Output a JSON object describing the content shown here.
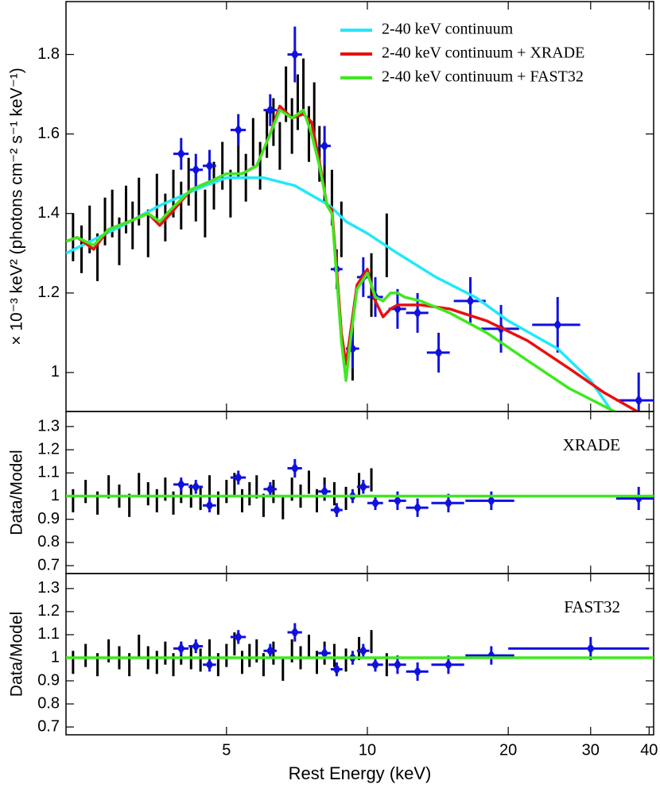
{
  "chart_data": [
    {
      "type": "errorbar-line",
      "ylabel": "× 10⁻³ keV² (photons cm⁻² s⁻¹ keV⁻¹)",
      "xscale": "log",
      "xlim": [
        2.27,
        40.9
      ],
      "xticks": [
        5,
        10,
        20,
        30,
        40
      ],
      "ylim": [
        0.902,
        1.933
      ],
      "yticks": [
        1,
        1.2,
        1.4,
        1.6,
        1.8
      ],
      "legend": "upper right",
      "series": [
        {
          "style": "points",
          "color": "#000000",
          "x": [
            2.35,
            2.45,
            2.55,
            2.65,
            2.75,
            2.85,
            2.95,
            3.05,
            3.15,
            3.25,
            3.4,
            3.55,
            3.7,
            3.85,
            4.0,
            4.15,
            4.3,
            4.5,
            4.7,
            4.9,
            5.1,
            5.3,
            5.5,
            5.7,
            5.9,
            6.1,
            6.3,
            6.5,
            6.7,
            6.9,
            7.1,
            7.3,
            7.5,
            7.7,
            7.9,
            8.1,
            8.4,
            8.8,
            9.3,
            10.2,
            11.0
          ],
          "values": [
            1.34,
            1.31,
            1.36,
            1.29,
            1.38,
            1.4,
            1.33,
            1.41,
            1.37,
            1.43,
            1.35,
            1.44,
            1.39,
            1.45,
            1.42,
            1.48,
            1.44,
            1.4,
            1.47,
            1.52,
            1.45,
            1.55,
            1.49,
            1.58,
            1.52,
            1.6,
            1.63,
            1.57,
            1.7,
            1.62,
            1.68,
            1.72,
            1.6,
            1.66,
            1.55,
            1.5,
            1.44,
            1.36,
            1.06,
            1.22,
            1.32
          ],
          "yerr": [
            0.06,
            0.06,
            0.06,
            0.06,
            0.06,
            0.06,
            0.06,
            0.06,
            0.06,
            0.06,
            0.06,
            0.06,
            0.06,
            0.06,
            0.06,
            0.06,
            0.06,
            0.06,
            0.06,
            0.06,
            0.06,
            0.06,
            0.06,
            0.06,
            0.06,
            0.06,
            0.06,
            0.06,
            0.07,
            0.07,
            0.07,
            0.07,
            0.07,
            0.07,
            0.07,
            0.07,
            0.07,
            0.07,
            0.08,
            0.08,
            0.08
          ]
        },
        {
          "style": "points",
          "color": "#1010e0",
          "marker": "diamond",
          "x": [
            4.0,
            4.3,
            4.6,
            5.3,
            6.2,
            7.0,
            8.1,
            8.6,
            9.3,
            9.8,
            10.4,
            11.6,
            12.8,
            14.2,
            16.6,
            19.3,
            25.5,
            38
          ],
          "values": [
            1.55,
            1.51,
            1.52,
            1.61,
            1.66,
            1.8,
            1.57,
            1.26,
            1.06,
            1.24,
            1.19,
            1.16,
            1.15,
            1.05,
            1.18,
            1.11,
            1.12,
            0.93
          ],
          "xerr": [
            0.15,
            0.15,
            0.15,
            0.2,
            0.2,
            0.25,
            0.25,
            0.25,
            0.3,
            0.3,
            0.4,
            0.5,
            0.7,
            0.8,
            1.3,
            1.8,
            3.0,
            4
          ],
          "yerr": [
            0.04,
            0.04,
            0.04,
            0.04,
            0.04,
            0.07,
            0.05,
            0.05,
            0.05,
            0.05,
            0.05,
            0.05,
            0.05,
            0.05,
            0.06,
            0.06,
            0.07,
            0.07
          ]
        },
        {
          "name": "2-40 keV continuum",
          "style": "line",
          "color": "#22e8f8",
          "x": [
            2.27,
            3,
            3.6,
            4.5,
            5,
            6,
            7,
            8.3,
            9,
            10,
            11.6,
            14,
            17,
            20,
            25.5,
            30,
            33.4
          ],
          "values": [
            1.3,
            1.37,
            1.42,
            1.47,
            1.49,
            1.49,
            1.47,
            1.42,
            1.38,
            1.35,
            1.3,
            1.24,
            1.19,
            1.13,
            1.06,
            0.98,
            0.9
          ]
        },
        {
          "name": "2-40 keV continuum + XRADE",
          "style": "line",
          "color": "#e81010",
          "x": [
            2.27,
            2.4,
            2.6,
            2.8,
            3.1,
            3.4,
            3.6,
            3.8,
            4.2,
            4.6,
            5,
            5.4,
            5.8,
            6.2,
            6.5,
            6.9,
            7.3,
            7.6,
            7.9,
            8.2,
            8.4,
            8.6,
            8.8,
            9.0,
            9.2,
            9.5,
            10,
            10.4,
            10.8,
            11.2,
            11.6,
            12,
            13,
            15,
            18,
            22,
            27,
            32,
            38
          ],
          "values": [
            1.33,
            1.34,
            1.31,
            1.36,
            1.38,
            1.4,
            1.37,
            1.4,
            1.46,
            1.48,
            1.5,
            1.5,
            1.52,
            1.6,
            1.67,
            1.64,
            1.65,
            1.63,
            1.53,
            1.42,
            1.41,
            1.26,
            1.1,
            1.02,
            1.1,
            1.22,
            1.26,
            1.18,
            1.14,
            1.16,
            1.17,
            1.17,
            1.17,
            1.16,
            1.13,
            1.08,
            1.01,
            0.95,
            0.9
          ]
        },
        {
          "name": "2-40 keV continuum + FAST32",
          "style": "line",
          "color": "#40e820",
          "x": [
            2.27,
            2.4,
            2.6,
            2.8,
            3.1,
            3.4,
            3.6,
            3.8,
            4.2,
            4.6,
            5,
            5.4,
            5.8,
            6.2,
            6.5,
            6.9,
            7.3,
            7.6,
            7.9,
            8.2,
            8.4,
            8.6,
            8.8,
            9.0,
            9.2,
            9.5,
            10,
            10.4,
            10.8,
            11.2,
            11.6,
            12,
            13,
            15,
            18,
            22,
            27,
            34
          ],
          "values": [
            1.33,
            1.34,
            1.32,
            1.36,
            1.38,
            1.4,
            1.38,
            1.41,
            1.46,
            1.48,
            1.5,
            1.5,
            1.52,
            1.6,
            1.66,
            1.64,
            1.66,
            1.6,
            1.52,
            1.42,
            1.4,
            1.24,
            1.08,
            0.98,
            1.08,
            1.21,
            1.25,
            1.19,
            1.18,
            1.2,
            1.2,
            1.19,
            1.18,
            1.15,
            1.1,
            1.03,
            0.96,
            0.9
          ]
        }
      ]
    },
    {
      "type": "errorbar-line",
      "ylabel": "Data/Model",
      "annotation": "XRADE",
      "xscale": "log",
      "xlim": [
        2.27,
        40.9
      ],
      "xticks": [
        5,
        10,
        20,
        30,
        40
      ],
      "ylim": [
        0.666,
        1.365
      ],
      "yticks": [
        0.7,
        0.8,
        0.9,
        1,
        1.1,
        1.2,
        1.3
      ],
      "series": [
        {
          "style": "points",
          "color": "#000000",
          "x": [
            2.35,
            2.5,
            2.65,
            2.8,
            2.95,
            3.1,
            3.25,
            3.4,
            3.55,
            3.7,
            3.85,
            4.0,
            4.2,
            4.4,
            4.6,
            4.8,
            5.0,
            5.2,
            5.4,
            5.6,
            5.8,
            6.0,
            6.3,
            6.6,
            6.9,
            7.2,
            7.5,
            7.8,
            8.1,
            8.5,
            9.0,
            9.6,
            10.2
          ],
          "values": [
            0.98,
            1.02,
            0.97,
            1.04,
            1.0,
            0.96,
            1.05,
            1.01,
            0.98,
            1.03,
            0.97,
            1.02,
            1.0,
            0.99,
            1.04,
            0.97,
            1.02,
            1.05,
            0.98,
            1.01,
            1.04,
            0.96,
            1.02,
            0.95,
            1.03,
            1.0,
            1.06,
            0.98,
            1.03,
            1.01,
            0.99,
            1.05,
            1.07
          ],
          "yerr": [
            0.05,
            0.05,
            0.05,
            0.05,
            0.05,
            0.05,
            0.05,
            0.05,
            0.05,
            0.05,
            0.05,
            0.05,
            0.05,
            0.05,
            0.05,
            0.05,
            0.05,
            0.05,
            0.05,
            0.05,
            0.05,
            0.05,
            0.05,
            0.05,
            0.05,
            0.05,
            0.05,
            0.05,
            0.05,
            0.05,
            0.05,
            0.05,
            0.05
          ]
        },
        {
          "style": "points",
          "color": "#1010e0",
          "marker": "diamond",
          "x": [
            4.0,
            4.3,
            4.6,
            5.3,
            6.2,
            7.0,
            8.1,
            8.6,
            9.3,
            9.8,
            10.4,
            11.6,
            12.8,
            14.9,
            18.4,
            38
          ],
          "values": [
            1.05,
            1.04,
            0.96,
            1.08,
            1.03,
            1.12,
            1.02,
            0.94,
            1.0,
            1.04,
            0.97,
            0.98,
            0.95,
            0.97,
            0.98,
            0.99
          ],
          "xerr": [
            0.15,
            0.15,
            0.15,
            0.2,
            0.2,
            0.25,
            0.25,
            0.25,
            0.3,
            0.3,
            0.4,
            0.5,
            0.7,
            1.2,
            2.2,
            4
          ],
          "yerr": [
            0.03,
            0.03,
            0.03,
            0.03,
            0.03,
            0.04,
            0.03,
            0.03,
            0.03,
            0.03,
            0.03,
            0.04,
            0.04,
            0.04,
            0.04,
            0.05
          ]
        },
        {
          "style": "line",
          "color": "#40e820",
          "x": [
            2.27,
            40.9
          ],
          "values": [
            1,
            1
          ]
        }
      ]
    },
    {
      "type": "errorbar-line",
      "ylabel": "Data/Model",
      "annotation": "FAST32",
      "xlabel": "Rest Energy (keV)",
      "xscale": "log",
      "xlim": [
        2.27,
        40.9
      ],
      "xticks": [
        5,
        10,
        20,
        30,
        40
      ],
      "ylim": [
        0.666,
        1.365
      ],
      "yticks": [
        0.7,
        0.8,
        0.9,
        1,
        1.1,
        1.2,
        1.3
      ],
      "series": [
        {
          "style": "points",
          "color": "#000000",
          "x": [
            2.35,
            2.5,
            2.65,
            2.8,
            2.95,
            3.1,
            3.25,
            3.4,
            3.55,
            3.7,
            3.85,
            4.0,
            4.2,
            4.4,
            4.6,
            4.8,
            5.0,
            5.2,
            5.4,
            5.6,
            5.8,
            6.0,
            6.3,
            6.6,
            6.9,
            7.2,
            7.5,
            7.8,
            8.1,
            8.5,
            9.0,
            9.6,
            10.2,
            11.0
          ],
          "values": [
            0.98,
            1.01,
            0.97,
            1.03,
            1.0,
            0.97,
            1.05,
            1.0,
            0.98,
            1.02,
            0.97,
            1.02,
            1.0,
            0.99,
            1.03,
            0.97,
            1.01,
            1.06,
            0.98,
            1.01,
            1.03,
            0.97,
            1.02,
            0.95,
            1.03,
            1.0,
            1.05,
            0.98,
            1.02,
            1.01,
            0.99,
            1.04,
            1.07,
            0.97
          ],
          "yerr": [
            0.05,
            0.05,
            0.05,
            0.05,
            0.05,
            0.05,
            0.05,
            0.05,
            0.05,
            0.05,
            0.05,
            0.05,
            0.05,
            0.05,
            0.05,
            0.05,
            0.05,
            0.05,
            0.05,
            0.05,
            0.05,
            0.05,
            0.05,
            0.05,
            0.05,
            0.05,
            0.05,
            0.05,
            0.05,
            0.05,
            0.05,
            0.05,
            0.05,
            0.05
          ]
        },
        {
          "style": "points",
          "color": "#1010e0",
          "marker": "diamond",
          "x": [
            4.0,
            4.3,
            4.6,
            5.3,
            6.2,
            7.0,
            8.1,
            8.6,
            9.3,
            9.8,
            10.4,
            11.6,
            12.8,
            14.9,
            18.4,
            30
          ],
          "values": [
            1.04,
            1.05,
            0.97,
            1.09,
            1.03,
            1.11,
            1.02,
            0.95,
            1.0,
            1.03,
            0.97,
            0.97,
            0.94,
            0.97,
            1.01,
            1.04
          ],
          "xerr": [
            0.15,
            0.15,
            0.15,
            0.2,
            0.2,
            0.25,
            0.25,
            0.25,
            0.3,
            0.3,
            0.4,
            0.5,
            0.7,
            1.2,
            2.2,
            10
          ],
          "yerr": [
            0.03,
            0.03,
            0.03,
            0.03,
            0.03,
            0.04,
            0.03,
            0.03,
            0.03,
            0.03,
            0.03,
            0.04,
            0.04,
            0.04,
            0.04,
            0.05
          ]
        },
        {
          "style": "line",
          "color": "#40e820",
          "x": [
            2.27,
            40.9
          ],
          "values": [
            1,
            1
          ]
        }
      ]
    }
  ]
}
